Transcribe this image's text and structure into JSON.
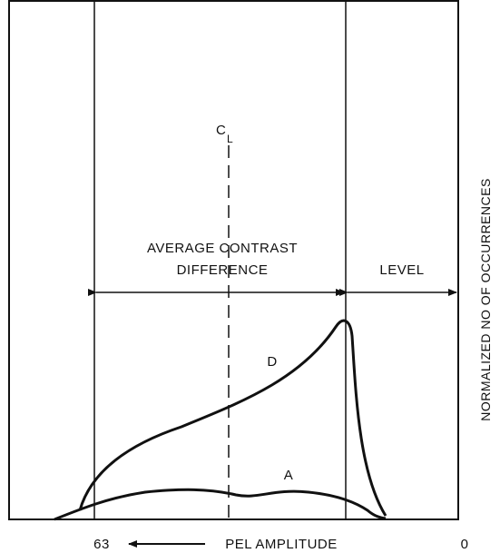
{
  "center_label": {
    "main": "C",
    "subscript": "L"
  },
  "regions": {
    "average_contrast_line1": "AVERAGE CONTRAST",
    "average_contrast_line2": "DIFFERENCE",
    "level": "LEVEL"
  },
  "curves": {
    "d": "D",
    "a": "A"
  },
  "x_axis": {
    "left": "63",
    "label": "PEL AMPLITUDE",
    "right": "0"
  },
  "y_axis": {
    "label": "NORMALIZED NO OF OCCURRENCES"
  }
}
